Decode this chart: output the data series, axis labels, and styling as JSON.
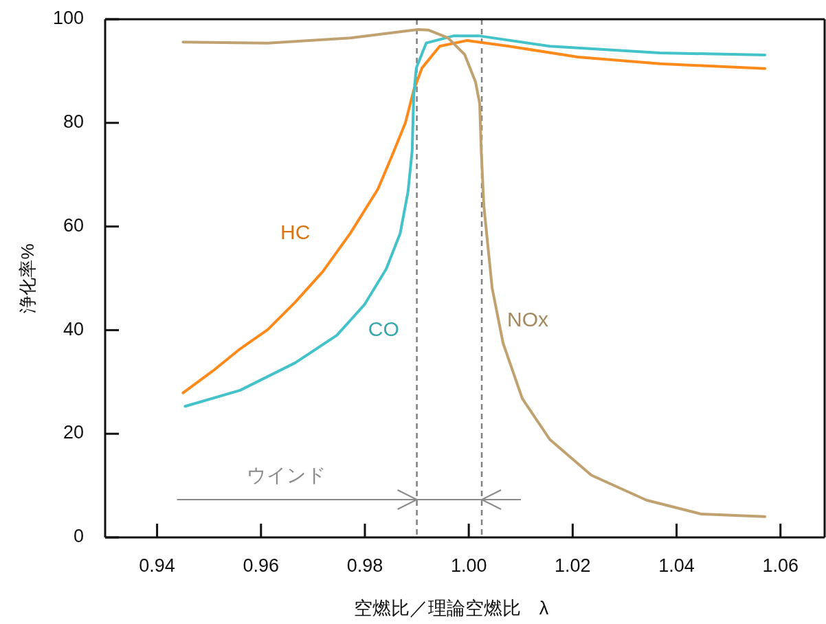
{
  "chart_data": {
    "type": "line",
    "xlabel": "空燃比／理論空燃比　λ",
    "ylabel": "浄化率%",
    "xlim": [
      0.93,
      1.0685
    ],
    "ylim": [
      0,
      100
    ],
    "xticks": [
      0.94,
      0.96,
      0.98,
      {
        "value": 1,
        "label": "1.00"
      },
      1.02,
      1.04,
      1.06
    ],
    "yticks": [
      0,
      20,
      40,
      60,
      80,
      100
    ],
    "grid": false,
    "marker": "none",
    "line_style": "solid",
    "ref_lines": [
      {
        "axis": "x",
        "value": 0.99,
        "color": "#808080",
        "line_style": "dashed"
      },
      {
        "axis": "x",
        "value": 1.0025,
        "color": "#808080",
        "line_style": "dashed"
      }
    ],
    "annotations": [
      "ウインド"
    ],
    "series": [
      {
        "name": "HC",
        "color": "#ff8a1c",
        "x": [
          0.945,
          0.9507,
          0.956,
          0.9613,
          0.9666,
          0.9719,
          0.9772,
          0.9825,
          0.9852,
          0.9878,
          0.9894,
          0.991,
          0.9944,
          0.9997,
          1.0019,
          1.0077,
          1.021,
          1.0368,
          1.057
        ],
        "values": [
          27.9,
          32.1,
          36.4,
          40.1,
          45.4,
          51.3,
          58.7,
          67.2,
          73.6,
          80,
          86.3,
          90.6,
          94.8,
          95.9,
          95.6,
          94.8,
          92.7,
          91.4,
          90.5
        ]
      },
      {
        "name": "CO",
        "color": "#44c2c9",
        "x": [
          0.9454,
          0.956,
          0.9666,
          0.9746,
          0.9799,
          0.9841,
          0.9868,
          0.9883,
          0.9891,
          0.9894,
          0.9899,
          0.9918,
          0.9971,
          1.0019,
          1.0156,
          1.0368,
          1.057
        ],
        "values": [
          25.3,
          28.4,
          33.7,
          39,
          44.9,
          51.8,
          58.7,
          66.7,
          74.6,
          85.3,
          90.6,
          95.4,
          96.8,
          96.8,
          94.8,
          93.5,
          93.1
        ]
      },
      {
        "name": "NOx",
        "color": "#c0a271",
        "x": [
          0.945,
          0.9613,
          0.9772,
          0.9902,
          0.9923,
          0.996,
          0.9992,
          1.0013,
          1.0021,
          1.0024,
          1.0029,
          1.0045,
          1.0066,
          1.0103,
          1.0156,
          1.0236,
          1.0342,
          1.0448,
          1.057
        ],
        "values": [
          95.6,
          95.4,
          96.4,
          98,
          97.9,
          96.4,
          93.2,
          87.9,
          83.7,
          74.6,
          64,
          48.1,
          37.5,
          26.8,
          18.9,
          12,
          7.2,
          4.5,
          4
        ]
      }
    ]
  }
}
